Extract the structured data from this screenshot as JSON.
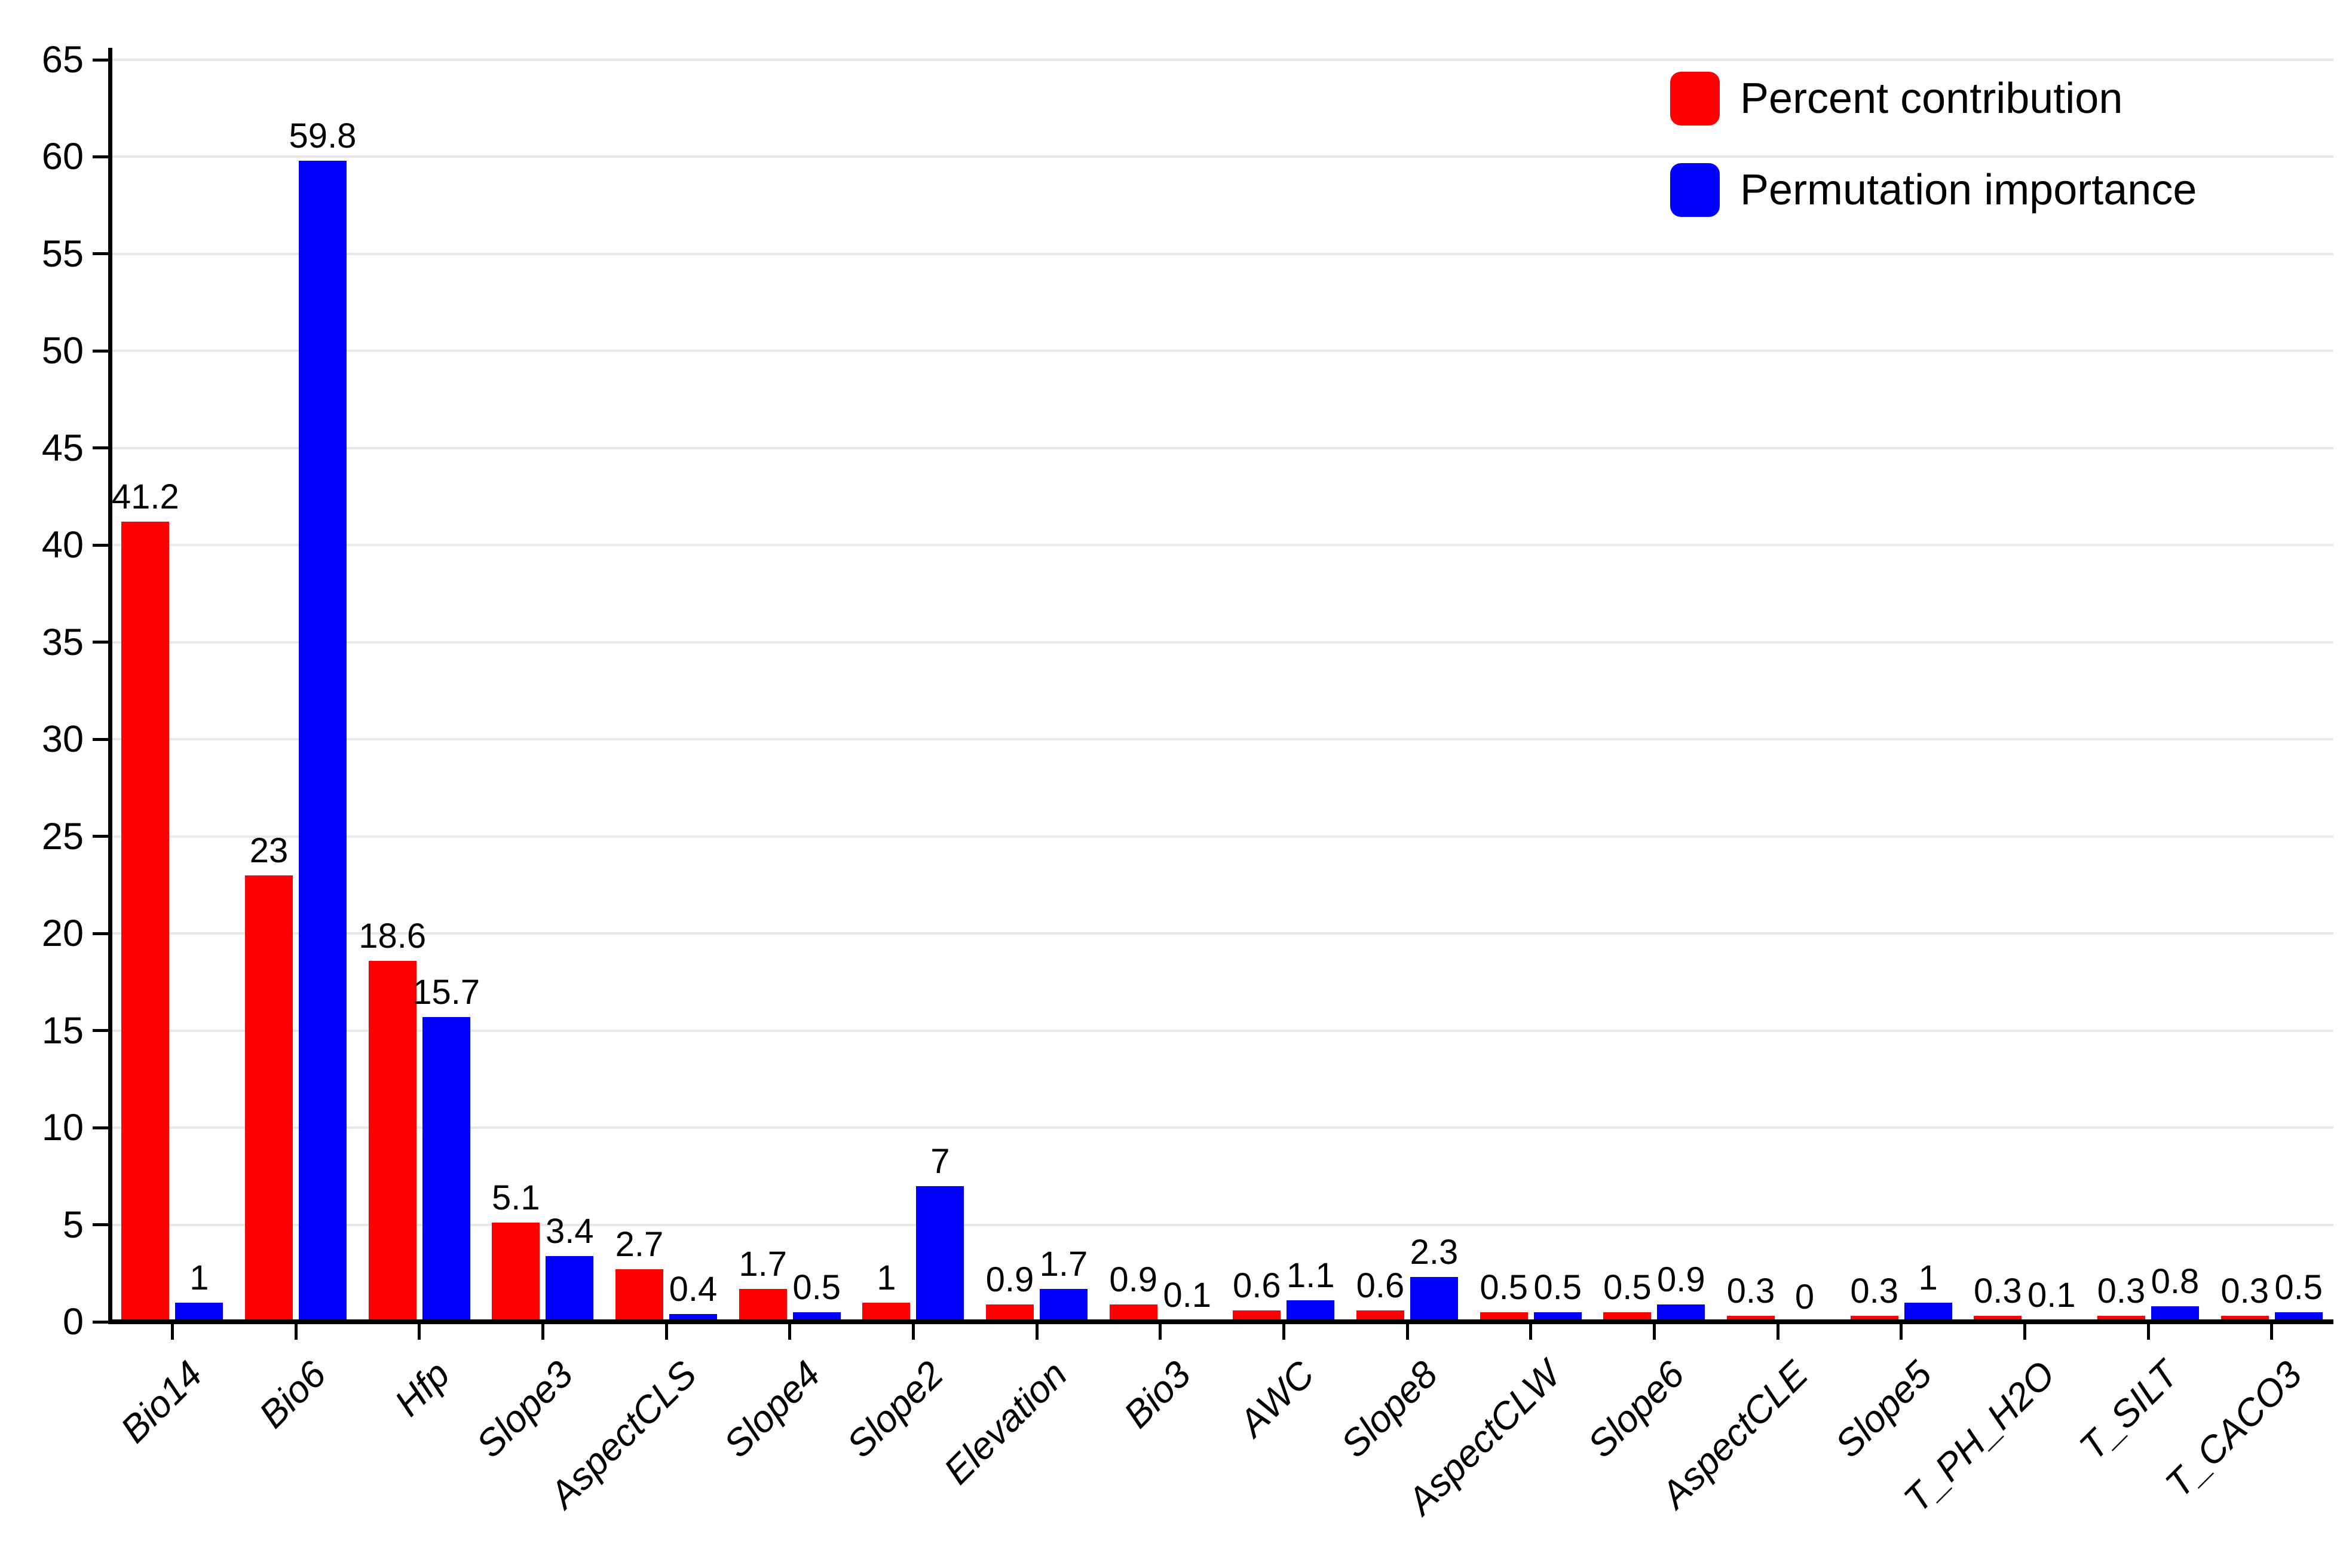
{
  "chart_data": {
    "type": "bar",
    "title": "",
    "xlabel": "",
    "ylabel": "",
    "categories": [
      "Bio14",
      "Bio6",
      "Hfp",
      "Slope3",
      "AspectCLS",
      "Slope4",
      "Slope2",
      "Elevation",
      "Bio3",
      "AWC",
      "Slope8",
      "AspectCLW",
      "Slope6",
      "AspectCLE",
      "Slope5",
      "T_PH_H2O",
      "T_SILT",
      "T_CACO3"
    ],
    "series": [
      {
        "name": "Percent contribution",
        "color": "#ff0000",
        "values": [
          41.2,
          23,
          18.6,
          5.1,
          2.7,
          1.7,
          1,
          0.9,
          0.9,
          0.6,
          0.6,
          0.5,
          0.5,
          0.3,
          0.3,
          0.3,
          0.3,
          0.3
        ]
      },
      {
        "name": "Permutation importance",
        "color": "#0000ff",
        "values": [
          1,
          59.8,
          15.7,
          3.4,
          0.4,
          0.5,
          7,
          1.7,
          0.1,
          1.1,
          2.3,
          0.5,
          0.9,
          0,
          1,
          0.1,
          0.8,
          0.5
        ]
      }
    ],
    "ylim": [
      0,
      65
    ],
    "yticks": [
      0,
      5,
      10,
      15,
      20,
      25,
      30,
      35,
      40,
      45,
      50,
      55,
      60,
      65
    ],
    "grid": "horizontal-gridlines-on",
    "gridline_color": "#e8e8e8",
    "axis_color": "#000000",
    "bar_value_labels": true,
    "legend_position": "top-right",
    "category_label_style": "italic-rotated-45"
  },
  "legend": {
    "items": [
      {
        "label": "Percent contribution",
        "color": "#ff0000"
      },
      {
        "label": "Permutation importance",
        "color": "#0000ff"
      }
    ]
  }
}
